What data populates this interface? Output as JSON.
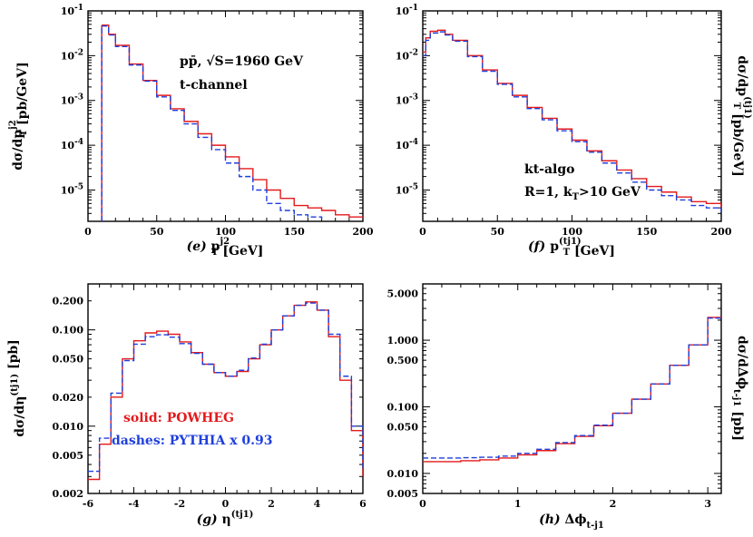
{
  "colors": {
    "powheg": "#e31a1c",
    "pythia": "#1f3fdc"
  },
  "legend": {
    "solid": "solid: POWHEG",
    "dashes": "dashes: PYTHIA x 0.93"
  },
  "chart_data": [
    {
      "id": "e",
      "type": "line",
      "log_y": true,
      "xlim": [
        0,
        200
      ],
      "ylim": [
        2e-06,
        0.1
      ],
      "xticks": [
        0,
        50,
        100,
        150,
        200
      ],
      "ylabel_prefix": "dσ/dp",
      "ylabel_sub": "T",
      "ylabel_sup": "j2",
      "ylabel_suffix": " [pb/GeV]",
      "xlabel_tag": "(e)",
      "xlabel_main": "p",
      "xlabel_sub": "T",
      "xlabel_sup": "j2",
      "xlabel_unit": " [GeV]",
      "annotations": [
        "pp̄, √S=1960 GeV",
        "t-channel"
      ],
      "x_start": 10,
      "series": [
        {
          "name": "POWHEG",
          "style": "solid",
          "x": [
            11,
            15,
            20,
            30,
            40,
            50,
            60,
            70,
            80,
            90,
            100,
            110,
            120,
            130,
            140,
            150,
            160,
            170,
            180,
            190,
            200
          ],
          "y": [
            0.048,
            0.03,
            0.017,
            0.0065,
            0.0028,
            0.0013,
            0.00065,
            0.00034,
            0.00018,
            0.0001,
            5.5e-05,
            3e-05,
            1.7e-05,
            1e-05,
            6.5e-06,
            4.5e-06,
            4e-06,
            3.5e-06,
            2.8e-06,
            2.5e-06,
            2.5e-06
          ]
        },
        {
          "name": "PYTHIA",
          "style": "dashed",
          "x": [
            11,
            15,
            20,
            30,
            40,
            50,
            60,
            70,
            80,
            90,
            100,
            110,
            120,
            130,
            140,
            150,
            160,
            170
          ],
          "y": [
            0.046,
            0.029,
            0.016,
            0.0062,
            0.0027,
            0.0012,
            0.0006,
            0.0003,
            0.00015,
            8e-05,
            4e-05,
            2e-05,
            1e-05,
            5e-06,
            3.5e-06,
            2.8e-06,
            2.5e-06,
            2.2e-06
          ]
        }
      ]
    },
    {
      "id": "f",
      "type": "line",
      "log_y": true,
      "xlim": [
        0,
        200
      ],
      "ylim": [
        2e-06,
        0.1
      ],
      "xticks": [
        0,
        50,
        100,
        150,
        200
      ],
      "ylabel_prefix": "dσ/dp",
      "ylabel_sub": "T",
      "ylabel_sup": "(tj1)",
      "ylabel_suffix": " [pb/GeV]",
      "xlabel_tag": "(f)",
      "xlabel_main": "p",
      "xlabel_sub": "T",
      "xlabel_sup": "(tj1)",
      "xlabel_unit": " [GeV]",
      "annotations": [
        "kt-algo",
        "R=1, k",
        "T",
        ">10 GeV"
      ],
      "series": [
        {
          "name": "POWHEG",
          "style": "solid",
          "x": [
            0,
            2,
            5,
            10,
            15,
            20,
            30,
            40,
            50,
            60,
            70,
            80,
            90,
            100,
            110,
            120,
            130,
            140,
            150,
            160,
            170,
            180,
            190,
            200
          ],
          "y": [
            0.012,
            0.025,
            0.035,
            0.037,
            0.03,
            0.022,
            0.01,
            0.0048,
            0.0024,
            0.0013,
            0.0007,
            0.0004,
            0.00023,
            0.00013,
            7.5e-05,
            4.5e-05,
            2.8e-05,
            1.8e-05,
            1.2e-05,
            9e-06,
            7e-06,
            5.5e-06,
            5e-06,
            4e-06
          ]
        },
        {
          "name": "PYTHIA",
          "style": "dashed",
          "x": [
            0,
            2,
            5,
            10,
            15,
            20,
            30,
            40,
            50,
            60,
            70,
            80,
            90,
            100,
            110,
            120,
            130,
            140,
            150,
            160,
            170,
            180,
            190,
            200
          ],
          "y": [
            0.01,
            0.022,
            0.032,
            0.034,
            0.029,
            0.021,
            0.0095,
            0.0045,
            0.0023,
            0.0012,
            0.00066,
            0.00037,
            0.00021,
            0.00012,
            7e-05,
            4e-05,
            2.4e-05,
            1.5e-05,
            1e-05,
            7.5e-06,
            6e-06,
            4.5e-06,
            4e-06,
            3.2e-06
          ]
        }
      ]
    },
    {
      "id": "g",
      "type": "line",
      "log_y": true,
      "xlim": [
        -6,
        6
      ],
      "ylim": [
        0.002,
        0.3
      ],
      "xticks": [
        -6,
        -4,
        -2,
        0,
        2,
        4,
        6
      ],
      "yticks": [
        0.002,
        0.005,
        0.01,
        0.02,
        0.05,
        0.1,
        0.2
      ],
      "yticklabels": [
        "0.002",
        "0.005",
        "0.010",
        "0.020",
        "0.050",
        "0.100",
        "0.200"
      ],
      "ylabel_prefix": "dσ/dη",
      "ylabel_sup": "(tj1)",
      "ylabel_suffix": " [pb]",
      "xlabel_tag": "(g)",
      "xlabel_main": "η",
      "xlabel_sup": "(tj1)",
      "series": [
        {
          "name": "POWHEG",
          "style": "solid",
          "x": [
            -6,
            -5.5,
            -5,
            -4.5,
            -4,
            -3.5,
            -3,
            -2.5,
            -2,
            -1.5,
            -1,
            -0.5,
            0,
            0.5,
            1,
            1.5,
            2,
            2.5,
            3,
            3.5,
            4,
            4.5,
            5,
            5.5,
            6
          ],
          "y": [
            0.0028,
            0.0065,
            0.02,
            0.05,
            0.077,
            0.093,
            0.097,
            0.09,
            0.075,
            0.058,
            0.044,
            0.036,
            0.033,
            0.037,
            0.05,
            0.07,
            0.1,
            0.14,
            0.18,
            0.195,
            0.16,
            0.085,
            0.03,
            0.009,
            0.003
          ]
        },
        {
          "name": "PYTHIA",
          "style": "dashed",
          "x": [
            -6,
            -5.5,
            -5,
            -4.5,
            -4,
            -3.5,
            -3,
            -2.5,
            -2,
            -1.5,
            -1,
            -0.5,
            0,
            0.5,
            1,
            1.5,
            2,
            2.5,
            3,
            3.5,
            4,
            4.5,
            5,
            5.5,
            6
          ],
          "y": [
            0.0034,
            0.0075,
            0.022,
            0.048,
            0.071,
            0.085,
            0.089,
            0.084,
            0.072,
            0.057,
            0.044,
            0.036,
            0.033,
            0.038,
            0.051,
            0.071,
            0.1,
            0.14,
            0.18,
            0.19,
            0.16,
            0.09,
            0.033,
            0.01,
            0.0035
          ]
        }
      ]
    },
    {
      "id": "h",
      "type": "line",
      "log_y": true,
      "xlim": [
        0,
        3.1416
      ],
      "ylim": [
        0.005,
        7
      ],
      "xticks": [
        0,
        1,
        2,
        3
      ],
      "yticks": [
        0.005,
        0.01,
        0.05,
        0.1,
        0.5,
        1,
        5
      ],
      "yticklabels": [
        "0.005",
        "0.010",
        "0.050",
        "0.100",
        "0.500",
        "1.000",
        "5.000"
      ],
      "ylabel_prefix": "dσ/dΔϕ",
      "ylabel_sub": "t-j1",
      "ylabel_suffix": " [pb]",
      "xlabel_tag": "(h)",
      "xlabel_main": "Δϕ",
      "xlabel_sub": "t-j1",
      "series": [
        {
          "name": "POWHEG",
          "style": "solid",
          "x": [
            0,
            0.2,
            0.4,
            0.6,
            0.8,
            1.0,
            1.2,
            1.4,
            1.6,
            1.8,
            2.0,
            2.2,
            2.4,
            2.6,
            2.8,
            3.0,
            3.1416
          ],
          "y": [
            0.015,
            0.015,
            0.0155,
            0.016,
            0.017,
            0.019,
            0.022,
            0.028,
            0.036,
            0.052,
            0.08,
            0.13,
            0.22,
            0.42,
            0.85,
            2.2,
            2.2
          ]
        },
        {
          "name": "PYTHIA",
          "style": "dashed",
          "x": [
            0,
            0.2,
            0.4,
            0.6,
            0.8,
            1.0,
            1.2,
            1.4,
            1.6,
            1.8,
            2.0,
            2.2,
            2.4,
            2.6,
            2.8,
            3.0,
            3.1416
          ],
          "y": [
            0.017,
            0.017,
            0.0172,
            0.0175,
            0.0182,
            0.02,
            0.023,
            0.029,
            0.037,
            0.053,
            0.08,
            0.13,
            0.22,
            0.42,
            0.85,
            2.15,
            2.15
          ]
        }
      ]
    }
  ]
}
